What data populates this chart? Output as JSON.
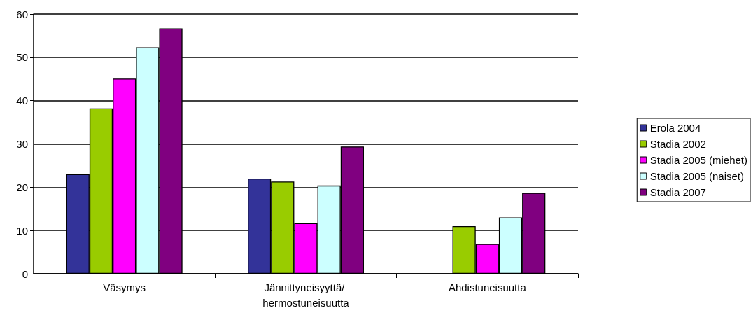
{
  "chart_data": {
    "type": "bar",
    "categories": [
      "Väsymys",
      "Jännittyneisyyttä/ hermostuneisuutta",
      "Ahdistuneisuutta"
    ],
    "series": [
      {
        "name": "Erola 2004",
        "color": "#333399",
        "values": [
          23.0,
          22.0,
          null
        ]
      },
      {
        "name": "Stadia 2002",
        "color": "#99cc00",
        "values": [
          38.2,
          21.3,
          11.0
        ]
      },
      {
        "name": "Stadia 2005 (miehet)",
        "color": "#ff00ff",
        "values": [
          45.1,
          11.7,
          6.9
        ]
      },
      {
        "name": "Stadia 2005 (naiset)",
        "color": "#ccffff",
        "values": [
          52.3,
          20.4,
          13.0
        ]
      },
      {
        "name": "Stadia 2007",
        "color": "#800080",
        "values": [
          56.7,
          29.4,
          18.7
        ]
      }
    ],
    "ylim": [
      0,
      60
    ],
    "yticks": [
      0,
      10,
      20,
      30,
      40,
      50,
      60
    ],
    "grid": "y",
    "legend": "right"
  }
}
